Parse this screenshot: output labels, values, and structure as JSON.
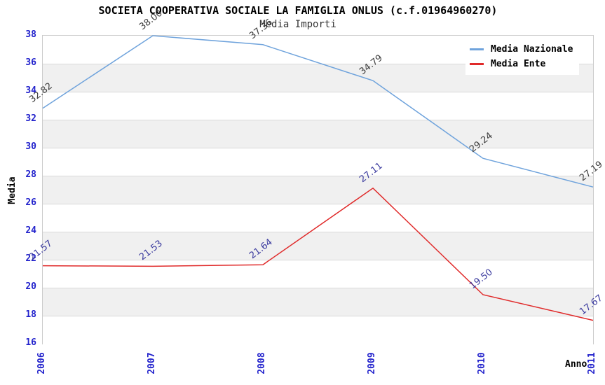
{
  "chart_data": {
    "type": "line",
    "title": "SOCIETA COOPERATIVA SOCIALE LA FAMIGLIA ONLUS (c.f.01964960270)",
    "subtitle": "Media Importi",
    "xlabel": "Anno",
    "ylabel": "Media",
    "categories": [
      "2006",
      "2007",
      "2008",
      "2009",
      "2010",
      "2011"
    ],
    "ylim": [
      16,
      38
    ],
    "ytick_step": 2,
    "yticks": [
      "38",
      "36",
      "34",
      "32",
      "30",
      "28",
      "26",
      "24",
      "22",
      "20",
      "18",
      "16"
    ],
    "grid": "alternating-horizontal-bands",
    "legend_position": "top-right",
    "series": [
      {
        "name": "Media Nazionale",
        "color": "#6fa3dc",
        "label_color": "#3d3d3d",
        "values": [
          32.82,
          38.0,
          37.36,
          34.79,
          29.24,
          27.19
        ],
        "labels": [
          "32.82",
          "38.00",
          "37.36",
          "34.79",
          "29.24",
          "27.19"
        ]
      },
      {
        "name": "Media Ente",
        "color": "#e02a2a",
        "label_color": "#3a3a9e",
        "values": [
          21.57,
          21.53,
          21.64,
          27.11,
          19.5,
          17.67
        ],
        "labels": [
          "21.57",
          "21.53",
          "21.64",
          "27.11",
          "19.50",
          "17.67"
        ]
      }
    ],
    "colors": {
      "tick_label": "#2222cc",
      "axis_label": "#000000",
      "band_gray": "#f0f0f0",
      "band_white": "#ffffff",
      "gridline": "#d9d9d9",
      "plot_border": "#cccccc",
      "background": "#ffffff"
    }
  }
}
